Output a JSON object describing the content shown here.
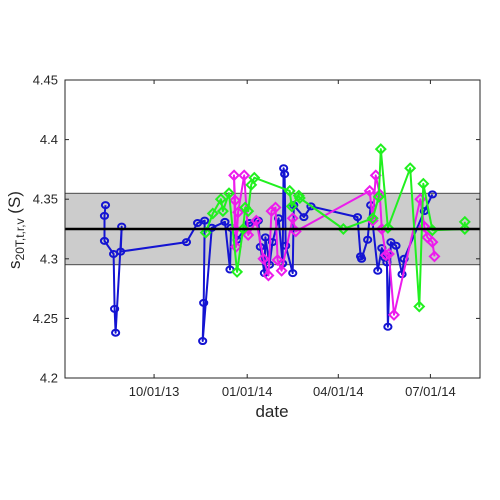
{
  "chart_data": {
    "type": "scatter",
    "title": "",
    "xlabel": "date",
    "ylabel": {
      "base": "s",
      "sub": "20T,t,r,v",
      "tail": " (S)"
    },
    "ylim": [
      4.2,
      4.45
    ],
    "yticks": [
      "4.2",
      "4.25",
      "4.3",
      "4.35",
      "4.4",
      "4.45"
    ],
    "xlim": [
      "2013-07-05",
      "2014-08-19"
    ],
    "xticks": [
      {
        "date": "2013-10-01",
        "label": "10/01/13"
      },
      {
        "date": "2014-01-01",
        "label": "01/01/14"
      },
      {
        "date": "2014-04-01",
        "label": "04/01/14"
      },
      {
        "date": "2014-07-01",
        "label": "07/01/14"
      }
    ],
    "band": {
      "lower": 4.295,
      "upper": 4.355,
      "color": "#cccccc"
    },
    "reference_line": {
      "value": 4.325,
      "color": "#000000"
    },
    "grid": false,
    "legend": "none",
    "series": [
      {
        "color": "#1414d2",
        "marker": "circle",
        "points": [
          {
            "x": "2013-08-14",
            "y": 4.345
          },
          {
            "x": "2013-08-13",
            "y": 4.336
          },
          {
            "x": "2013-08-13",
            "y": 4.315
          },
          {
            "x": "2013-08-22",
            "y": 4.304
          },
          {
            "x": "2013-08-23",
            "y": 4.258
          },
          {
            "x": "2013-08-24",
            "y": 4.238
          },
          {
            "x": "2013-08-30",
            "y": 4.327
          },
          {
            "x": "2013-08-29",
            "y": 4.306
          },
          {
            "x": "2013-11-02",
            "y": 4.314
          },
          {
            "x": "2013-11-13",
            "y": 4.33
          },
          {
            "x": "2013-11-20",
            "y": 4.332
          },
          {
            "x": "2013-11-19",
            "y": 4.263
          },
          {
            "x": "2013-11-18",
            "y": 4.231
          },
          {
            "x": "2013-11-27",
            "y": 4.326
          },
          {
            "x": "2013-12-10",
            "y": 4.331
          },
          {
            "x": "2013-12-15",
            "y": 4.291
          },
          {
            "x": "2013-12-16",
            "y": 4.326
          },
          {
            "x": "2013-12-22",
            "y": 4.316
          },
          {
            "x": "2014-01-03",
            "y": 4.33
          },
          {
            "x": "2014-01-12",
            "y": 4.332
          },
          {
            "x": "2014-01-14",
            "y": 4.31
          },
          {
            "x": "2014-01-18",
            "y": 4.288
          },
          {
            "x": "2014-01-19",
            "y": 4.318
          },
          {
            "x": "2014-01-23",
            "y": 4.295
          },
          {
            "x": "2014-01-26",
            "y": 4.314
          },
          {
            "x": "2014-02-01",
            "y": 4.334
          },
          {
            "x": "2014-02-05",
            "y": 4.296
          },
          {
            "x": "2014-02-06",
            "y": 4.376
          },
          {
            "x": "2014-02-07",
            "y": 4.371
          },
          {
            "x": "2014-02-08",
            "y": 4.311
          },
          {
            "x": "2014-02-15",
            "y": 4.288
          },
          {
            "x": "2014-02-16",
            "y": 4.345
          },
          {
            "x": "2014-02-26",
            "y": 4.335
          },
          {
            "x": "2014-03-05",
            "y": 4.344
          },
          {
            "x": "2014-04-20",
            "y": 4.335
          },
          {
            "x": "2014-04-23",
            "y": 4.302
          },
          {
            "x": "2014-04-24",
            "y": 4.3
          },
          {
            "x": "2014-04-30",
            "y": 4.316
          },
          {
            "x": "2014-05-03",
            "y": 4.345
          },
          {
            "x": "2014-05-10",
            "y": 4.29
          },
          {
            "x": "2014-05-14",
            "y": 4.309
          },
          {
            "x": "2014-05-17",
            "y": 4.301
          },
          {
            "x": "2014-05-19",
            "y": 4.297
          },
          {
            "x": "2014-05-20",
            "y": 4.243
          },
          {
            "x": "2014-05-23",
            "y": 4.314
          },
          {
            "x": "2014-05-28",
            "y": 4.311
          },
          {
            "x": "2014-06-03",
            "y": 4.287
          },
          {
            "x": "2014-06-05",
            "y": 4.3
          },
          {
            "x": "2014-06-25",
            "y": 4.34
          },
          {
            "x": "2014-07-03",
            "y": 4.354
          }
        ]
      },
      {
        "color": "#ec1cec",
        "marker": "diamond",
        "points": [
          {
            "x": "2013-12-20",
            "y": 4.325
          },
          {
            "x": "2013-12-19",
            "y": 4.37
          },
          {
            "x": "2013-12-20",
            "y": 4.349
          },
          {
            "x": "2013-12-21",
            "y": 4.31
          },
          {
            "x": "2013-12-23",
            "y": 4.339
          },
          {
            "x": "2013-12-29",
            "y": 4.37
          },
          {
            "x": "2014-01-02",
            "y": 4.32
          },
          {
            "x": "2014-01-10",
            "y": 4.332
          },
          {
            "x": "2014-01-17",
            "y": 4.3
          },
          {
            "x": "2014-01-22",
            "y": 4.286
          },
          {
            "x": "2014-01-25",
            "y": 4.34
          },
          {
            "x": "2014-01-29",
            "y": 4.343
          },
          {
            "x": "2014-01-31",
            "y": 4.299
          },
          {
            "x": "2014-02-04",
            "y": 4.29
          },
          {
            "x": "2014-02-15",
            "y": 4.334
          },
          {
            "x": "2014-02-18",
            "y": 4.323
          },
          {
            "x": "2014-05-02",
            "y": 4.357
          },
          {
            "x": "2014-05-05",
            "y": 4.332
          },
          {
            "x": "2014-05-08",
            "y": 4.37
          },
          {
            "x": "2014-05-12",
            "y": 4.354
          },
          {
            "x": "2014-05-14",
            "y": 4.325
          },
          {
            "x": "2014-05-18",
            "y": 4.303
          },
          {
            "x": "2014-05-21",
            "y": 4.304
          },
          {
            "x": "2014-05-26",
            "y": 4.253
          },
          {
            "x": "2014-06-21",
            "y": 4.35
          },
          {
            "x": "2014-06-25",
            "y": 4.327
          },
          {
            "x": "2014-06-28",
            "y": 4.318
          },
          {
            "x": "2014-07-03",
            "y": 4.314
          },
          {
            "x": "2014-07-05",
            "y": 4.302
          }
        ]
      },
      {
        "color": "#21f01f",
        "marker": "diamond",
        "points": [
          {
            "x": "2013-11-21",
            "y": 4.322
          },
          {
            "x": "2013-11-28",
            "y": 4.338
          },
          {
            "x": "2013-12-06",
            "y": 4.35
          },
          {
            "x": "2013-12-08",
            "y": 4.34
          },
          {
            "x": "2013-12-14",
            "y": 4.355
          },
          {
            "x": "2013-12-22",
            "y": 4.289
          },
          {
            "x": "2013-12-28",
            "y": 4.325
          },
          {
            "x": "2013-12-30",
            "y": 4.343
          },
          {
            "x": "2014-01-02",
            "y": 4.34
          },
          {
            "x": "2014-01-05",
            "y": 4.362
          },
          {
            "x": "2014-01-08",
            "y": 4.368
          },
          {
            "x": "2014-02-12",
            "y": 4.357
          },
          {
            "x": "2014-02-14",
            "y": 4.344
          },
          {
            "x": "2014-02-21",
            "y": 4.353
          },
          {
            "x": "2014-02-22",
            "y": 4.351
          },
          {
            "x": "2014-04-06",
            "y": 4.325
          },
          {
            "x": "2014-05-05",
            "y": 4.334
          },
          {
            "x": "2014-05-11",
            "y": 4.352
          },
          {
            "x": "2014-05-13",
            "y": 4.392
          },
          {
            "x": "2014-05-20",
            "y": 4.326
          },
          {
            "x": "2014-06-11",
            "y": 4.376
          },
          {
            "x": "2014-06-20",
            "y": 4.26
          },
          {
            "x": "2014-06-24",
            "y": 4.363
          },
          {
            "x": "2014-07-03",
            "y": 4.324
          },
          {
            "x": "2014-08-04",
            "y": 4.325
          },
          {
            "x": "2014-08-04",
            "y": 4.331
          }
        ]
      }
    ]
  }
}
